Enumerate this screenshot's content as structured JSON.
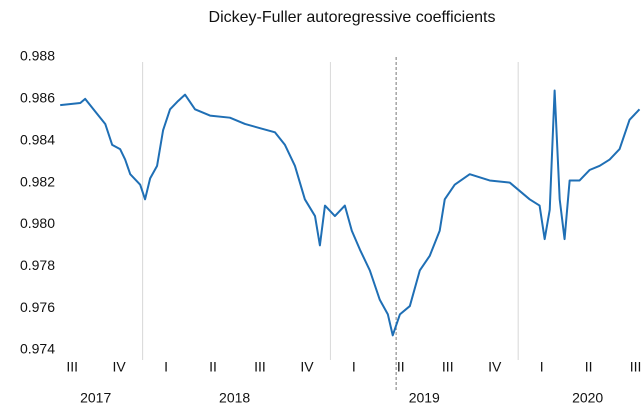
{
  "chart_data": {
    "type": "line",
    "title": "Dickey-Fuller autoregressive coefficients",
    "xlim": [
      2017.56,
      2020.67
    ],
    "ylim": [
      0.974,
      0.988
    ],
    "yticks": [
      {
        "value": 0.974,
        "label": "0.974"
      },
      {
        "value": 0.976,
        "label": "0.976"
      },
      {
        "value": 0.978,
        "label": "0.978"
      },
      {
        "value": 0.98,
        "label": "0.980"
      },
      {
        "value": 0.982,
        "label": "0.982"
      },
      {
        "value": 0.984,
        "label": "0.984"
      },
      {
        "value": 0.986,
        "label": "0.986"
      },
      {
        "value": 0.988,
        "label": "0.988"
      }
    ],
    "xticks": [
      {
        "value": 2017.625,
        "label": "III"
      },
      {
        "value": 2017.875,
        "label": "IV"
      },
      {
        "value": 2018.125,
        "label": "I"
      },
      {
        "value": 2018.375,
        "label": "II"
      },
      {
        "value": 2018.625,
        "label": "III"
      },
      {
        "value": 2018.875,
        "label": "IV"
      },
      {
        "value": 2019.125,
        "label": "I"
      },
      {
        "value": 2019.375,
        "label": "II"
      },
      {
        "value": 2019.625,
        "label": "III"
      },
      {
        "value": 2019.875,
        "label": "IV"
      },
      {
        "value": 2020.125,
        "label": "I"
      },
      {
        "value": 2020.375,
        "label": "II"
      },
      {
        "value": 2020.625,
        "label": "III"
      }
    ],
    "year_labels": [
      {
        "value": 2017.75,
        "label": "2017"
      },
      {
        "value": 2018.49,
        "label": "2018"
      },
      {
        "value": 2019.5,
        "label": "2019"
      },
      {
        "value": 2020.37,
        "label": "2020"
      }
    ],
    "year_lines": [
      2018,
      2019,
      2020
    ],
    "marker_line": 2019.35,
    "x": [
      2017.561,
      2017.668,
      2017.694,
      2017.747,
      2017.801,
      2017.838,
      2017.88,
      2017.907,
      2017.934,
      2017.987,
      2018.013,
      2018.04,
      2018.077,
      2018.109,
      2018.146,
      2018.189,
      2018.226,
      2018.279,
      2018.359,
      2018.465,
      2018.545,
      2018.625,
      2018.705,
      2018.758,
      2018.811,
      2018.864,
      2018.918,
      2018.944,
      2018.971,
      2019.024,
      2019.077,
      2019.114,
      2019.157,
      2019.21,
      2019.263,
      2019.306,
      2019.332,
      2019.37,
      2019.423,
      2019.476,
      2019.529,
      2019.582,
      2019.609,
      2019.662,
      2019.742,
      2019.848,
      2019.955,
      2020.061,
      2020.114,
      2020.141,
      2020.168,
      2020.194,
      2020.221,
      2020.247,
      2020.274,
      2020.327,
      2020.38,
      2020.434,
      2020.487,
      2020.54,
      2020.593,
      2020.646
    ],
    "series": [
      {
        "name": "Dickey-Fuller coefficient",
        "color": "#1f6fb5",
        "values": [
          0.9857,
          0.9858,
          0.986,
          0.9854,
          0.9848,
          0.9838,
          0.9836,
          0.9831,
          0.9824,
          0.9819,
          0.9812,
          0.9822,
          0.9828,
          0.9845,
          0.9855,
          0.9859,
          0.9862,
          0.9855,
          0.9852,
          0.9851,
          0.9848,
          0.9846,
          0.9844,
          0.9838,
          0.9828,
          0.9812,
          0.9804,
          0.979,
          0.9809,
          0.9804,
          0.9809,
          0.9797,
          0.9788,
          0.9778,
          0.9764,
          0.9757,
          0.9747,
          0.9757,
          0.9761,
          0.9778,
          0.9785,
          0.9797,
          0.9812,
          0.9819,
          0.9824,
          0.9821,
          0.982,
          0.9812,
          0.9809,
          0.9793,
          0.9807,
          0.9864,
          0.9812,
          0.9793,
          0.9821,
          0.9821,
          0.9826,
          0.9828,
          0.9831,
          0.9836,
          0.985,
          0.9855
        ]
      }
    ]
  }
}
